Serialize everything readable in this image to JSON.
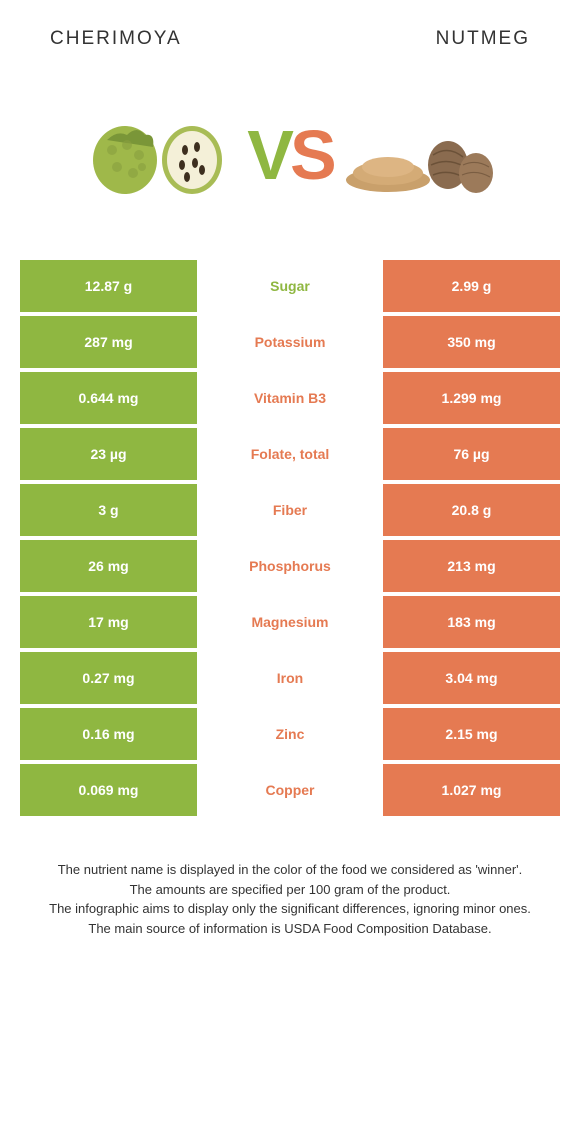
{
  "colors": {
    "left": "#8fb741",
    "right": "#e57a52",
    "text_dark": "#333333"
  },
  "left_food": {
    "title": "CHERIMOYA"
  },
  "right_food": {
    "title": "Nutmeg"
  },
  "vs": {
    "v": "V",
    "s": "S"
  },
  "rows": [
    {
      "left": "12.87 g",
      "label": "Sugar",
      "right": "2.99 g",
      "winner": "left"
    },
    {
      "left": "287 mg",
      "label": "Potassium",
      "right": "350 mg",
      "winner": "right"
    },
    {
      "left": "0.644 mg",
      "label": "Vitamin B3",
      "right": "1.299 mg",
      "winner": "right"
    },
    {
      "left": "23 µg",
      "label": "Folate, total",
      "right": "76 µg",
      "winner": "right"
    },
    {
      "left": "3 g",
      "label": "Fiber",
      "right": "20.8 g",
      "winner": "right"
    },
    {
      "left": "26 mg",
      "label": "Phosphorus",
      "right": "213 mg",
      "winner": "right"
    },
    {
      "left": "17 mg",
      "label": "Magnesium",
      "right": "183 mg",
      "winner": "right"
    },
    {
      "left": "0.27 mg",
      "label": "Iron",
      "right": "3.04 mg",
      "winner": "right"
    },
    {
      "left": "0.16 mg",
      "label": "Zinc",
      "right": "2.15 mg",
      "winner": "right"
    },
    {
      "left": "0.069 mg",
      "label": "Copper",
      "right": "1.027 mg",
      "winner": "right"
    }
  ],
  "footer": {
    "line1": "The nutrient name is displayed in the color of the food we considered as 'winner'.",
    "line2": "The amounts are specified per 100 gram of the product.",
    "line3": "The infographic aims to display only the significant differences, ignoring minor ones.",
    "line4": "The main source of information is USDA Food Composition Database."
  }
}
